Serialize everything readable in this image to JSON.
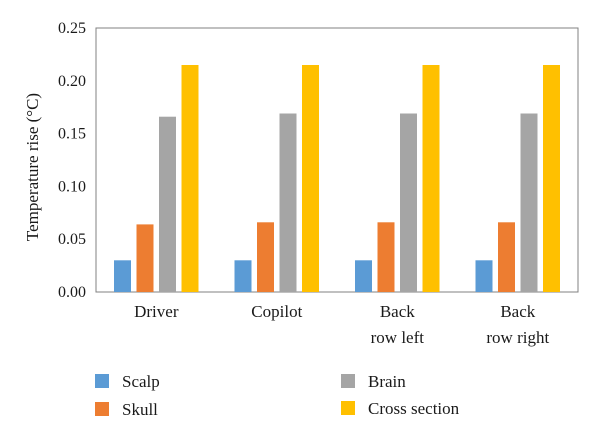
{
  "chart_data": {
    "type": "bar",
    "title": "",
    "xlabel": "",
    "ylabel": "Temperature rise (°C)",
    "ylim": [
      0,
      0.25
    ],
    "yticks": [
      "0.00",
      "0.05",
      "0.10",
      "0.15",
      "0.20",
      "0.25"
    ],
    "categories": [
      [
        "Driver"
      ],
      [
        "Copilot"
      ],
      [
        "Back",
        "row left"
      ],
      [
        "Back",
        "row right"
      ]
    ],
    "series": [
      {
        "name": "Scalp",
        "color": "#5b9bd5",
        "values": [
          0.03,
          0.03,
          0.03,
          0.03
        ]
      },
      {
        "name": "Skull",
        "color": "#ed7d31",
        "values": [
          0.064,
          0.066,
          0.066,
          0.066
        ]
      },
      {
        "name": "Brain",
        "color": "#a5a5a5",
        "values": [
          0.166,
          0.169,
          0.169,
          0.169
        ]
      },
      {
        "name": "Cross section",
        "color": "#ffc000",
        "values": [
          0.215,
          0.215,
          0.215,
          0.215
        ]
      }
    ],
    "grid": false,
    "legend_position": "bottom"
  }
}
